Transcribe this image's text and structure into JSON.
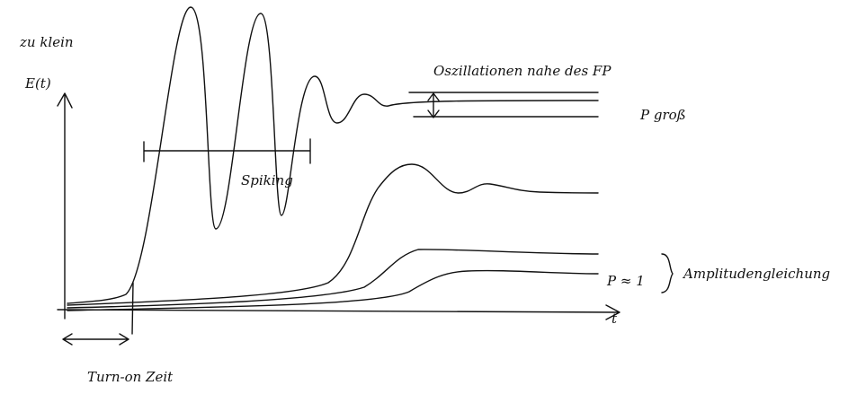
{
  "labels": {
    "too_small": "zu klein",
    "y_axis": "E(t)",
    "oscillations": "Oszillationen nahe des FP",
    "p_large": "P groß",
    "spiking": "Spiking",
    "p_approx_one": "P ≈ 1",
    "amplitude_equation": "Amplitudengleichung",
    "x_axis": "t",
    "turn_on": "Turn-on Zeit"
  }
}
